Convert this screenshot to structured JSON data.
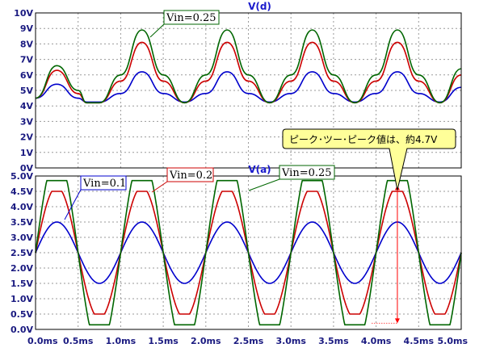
{
  "colors": {
    "frame": "#000000",
    "grid": "#9a9a9a",
    "tick_text": "#1a1a80",
    "title_text": "#1a1acc",
    "callout_fill": "#ffff99",
    "label_box_fill": "#ffffff",
    "marker": "#ff0000",
    "marker_dots": "#ff0000"
  },
  "chart_data": [
    {
      "type": "line",
      "title": "V(d)",
      "x_range": [
        0,
        5
      ],
      "x_unit": "ms",
      "y_range": [
        0,
        10
      ],
      "y_tick_labels": [
        "0V",
        "1V",
        "2V",
        "3V",
        "4V",
        "5V",
        "6V",
        "7V",
        "8V",
        "9V",
        "10V"
      ],
      "x_tick_labels": [
        "0.0ms",
        "0.5ms",
        "1.0ms",
        "1.5ms",
        "2.0ms",
        "2.5ms",
        "3.0ms",
        "3.5ms",
        "4.0ms",
        "4.5ms",
        "5.0ms"
      ],
      "grid": true,
      "series": [
        {
          "name": "",
          "color": "#0000cc",
          "x": [
            0,
            0.25,
            0.5,
            0.6,
            0.75,
            1.0,
            1.25,
            1.5,
            1.75,
            2.0,
            2.25,
            2.5,
            2.75,
            3.0,
            3.25,
            3.5,
            3.75,
            4.0,
            4.25,
            4.5,
            4.75,
            5.0
          ],
          "y": [
            4.5,
            5.4,
            4.5,
            4.25,
            4.25,
            4.8,
            6.2,
            4.8,
            4.25,
            4.8,
            6.2,
            4.8,
            4.25,
            4.8,
            6.2,
            4.8,
            4.25,
            4.8,
            6.2,
            4.8,
            4.25,
            5.2
          ]
        },
        {
          "name": "",
          "color": "#cc0000",
          "x": [
            0,
            0.25,
            0.5,
            0.6,
            0.75,
            1.0,
            1.25,
            1.5,
            1.75,
            2.0,
            2.25,
            2.5,
            2.75,
            3.0,
            3.25,
            3.5,
            3.75,
            4.0,
            4.25,
            4.5,
            4.75,
            5.0
          ],
          "y": [
            4.5,
            6.3,
            4.8,
            4.2,
            4.2,
            5.6,
            8.1,
            5.6,
            4.2,
            5.6,
            8.1,
            5.6,
            4.2,
            5.6,
            8.1,
            5.6,
            4.2,
            5.6,
            8.1,
            5.6,
            4.2,
            6.0
          ]
        },
        {
          "name": "Vin=0.25",
          "color": "#006600",
          "x": [
            0,
            0.25,
            0.5,
            0.6,
            0.75,
            1.0,
            1.25,
            1.5,
            1.75,
            2.0,
            2.25,
            2.5,
            2.75,
            3.0,
            3.25,
            3.5,
            3.75,
            4.0,
            4.25,
            4.5,
            4.75,
            5.0
          ],
          "y": [
            4.5,
            6.6,
            5.0,
            4.2,
            4.2,
            6.0,
            8.9,
            6.0,
            4.2,
            6.0,
            8.9,
            6.0,
            4.2,
            6.0,
            8.9,
            6.0,
            4.2,
            6.0,
            8.9,
            6.0,
            4.2,
            6.4
          ]
        }
      ]
    },
    {
      "type": "line",
      "title": "V(a)",
      "x_range": [
        0,
        5
      ],
      "x_unit": "ms",
      "y_range": [
        0,
        5
      ],
      "y_tick_labels": [
        "0.0V",
        "0.5V",
        "1.0V",
        "1.5V",
        "2.0V",
        "2.5V",
        "3.0V",
        "3.5V",
        "4.0V",
        "4.5V",
        "5.0V"
      ],
      "x_tick_labels": [
        "0.0ms",
        "0.5ms",
        "1.0ms",
        "1.5ms",
        "2.0ms",
        "2.5ms",
        "3.0ms",
        "3.5ms",
        "4.0ms",
        "4.5ms",
        "5.0ms"
      ],
      "grid": true,
      "period_ms": 1.0,
      "offset_v": 2.5,
      "series": [
        {
          "name": "Vin=0.1",
          "color": "#0000cc",
          "amplitude": 1.0,
          "clip": 1.0
        },
        {
          "name": "Vin=0.2",
          "color": "#cc0000",
          "amplitude": 2.15,
          "clip": 2.0
        },
        {
          "name": "Vin=0.25",
          "color": "#006600",
          "amplitude": 3.2,
          "clip": 2.35
        }
      ],
      "annotation": {
        "text": "ピーク･ツー･ピーク値は、約4.7V",
        "peak_to_peak_v": 4.7,
        "marker_x_ms": 4.25,
        "marker_y_top_v": 4.7,
        "marker_y_bottom_v": 0.2
      }
    }
  ]
}
